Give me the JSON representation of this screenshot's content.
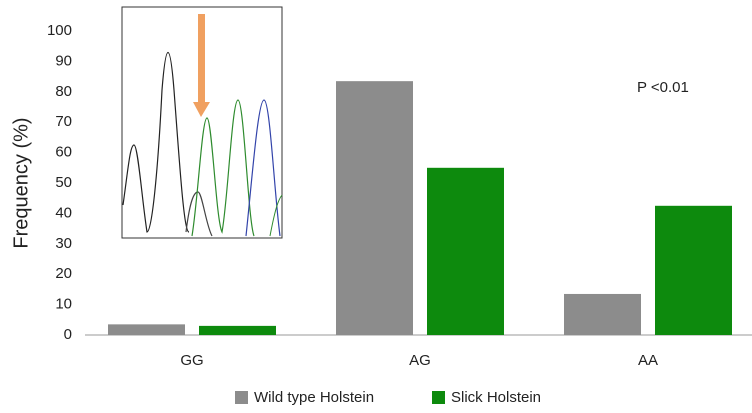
{
  "chart_data": {
    "type": "bar",
    "y_label": "Frequency (%)",
    "annotation": "P  <0.01",
    "categories": [
      "GG",
      "AG",
      "AA"
    ],
    "series": [
      {
        "name": "Wild type Holstein",
        "color": "#8c8c8c",
        "values": [
          3.5,
          83.5,
          13.5
        ]
      },
      {
        "name": "Slick Holstein",
        "color": "#0d8a0d",
        "values": [
          3,
          55,
          42.5
        ]
      }
    ],
    "ylim": [
      0,
      100
    ],
    "yticks": [
      0,
      10,
      20,
      30,
      40,
      50,
      60,
      70,
      80,
      90,
      100
    ]
  }
}
